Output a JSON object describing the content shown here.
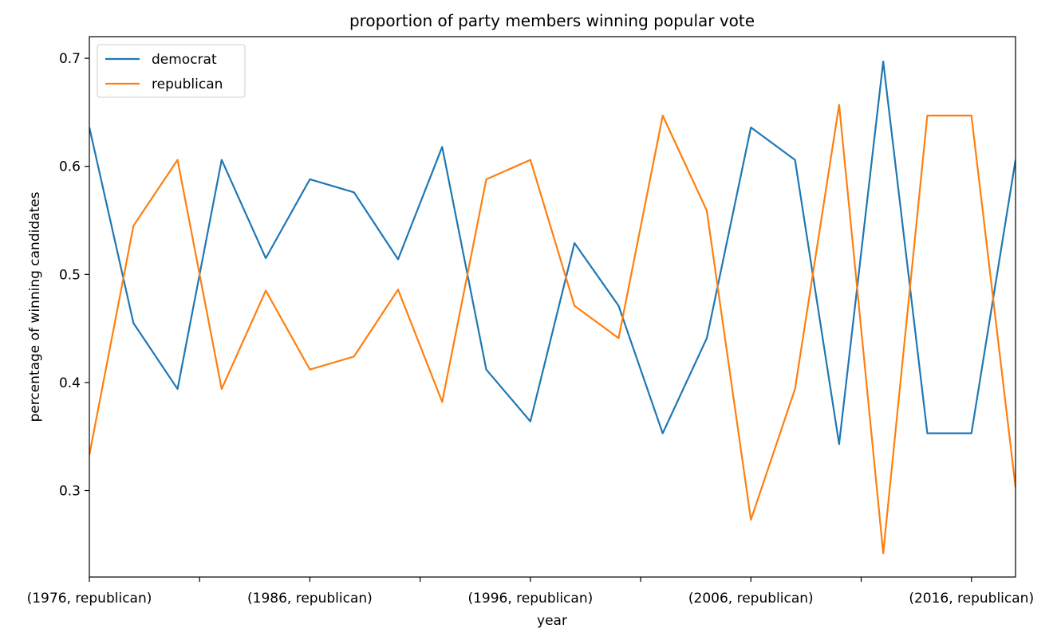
{
  "chart_data": {
    "type": "line",
    "title": "proportion of party members winning popular vote",
    "xlabel": "year",
    "ylabel": "percentage of winning candidates",
    "ylim": [
      0.22,
      0.72
    ],
    "x": [
      1976,
      1978,
      1980,
      1982,
      1984,
      1986,
      1988,
      1990,
      1992,
      1994,
      1996,
      1998,
      2000,
      2002,
      2004,
      2006,
      2008,
      2010,
      2012,
      2014,
      2016,
      2018
    ],
    "xtick_labels": [
      {
        "x": 1976,
        "label": "(1976, republican)"
      },
      {
        "x": 1981,
        "label": ""
      },
      {
        "x": 1986,
        "label": "(1986, republican)"
      },
      {
        "x": 1991,
        "label": ""
      },
      {
        "x": 1996,
        "label": "(1996, republican)"
      },
      {
        "x": 2001,
        "label": ""
      },
      {
        "x": 2006,
        "label": "(2006, republican)"
      },
      {
        "x": 2011,
        "label": ""
      },
      {
        "x": 2016,
        "label": "(2016, republican)"
      }
    ],
    "yticks": [
      0.3,
      0.4,
      0.5,
      0.6,
      0.7
    ],
    "ytick_labels": [
      "0.3",
      "0.4",
      "0.5",
      "0.6",
      "0.7"
    ],
    "grid": false,
    "legend_position": "top-left",
    "series": [
      {
        "name": "democrat",
        "color": "#1f77b4",
        "values": [
          0.636,
          0.455,
          0.394,
          0.606,
          0.515,
          0.588,
          0.576,
          0.514,
          0.618,
          0.412,
          0.364,
          0.529,
          0.471,
          0.353,
          0.441,
          0.636,
          0.606,
          0.343,
          0.697,
          0.353,
          0.353,
          0.606
        ]
      },
      {
        "name": "republican",
        "color": "#ff7f0e",
        "values": [
          0.333,
          0.545,
          0.606,
          0.394,
          0.485,
          0.412,
          0.424,
          0.486,
          0.382,
          0.588,
          0.606,
          0.471,
          0.441,
          0.647,
          0.559,
          0.273,
          0.394,
          0.657,
          0.242,
          0.647,
          0.647,
          0.303
        ]
      }
    ]
  }
}
